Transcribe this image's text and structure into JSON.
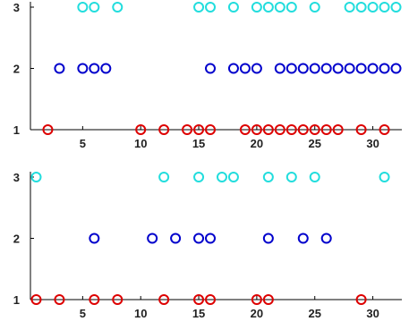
{
  "colors": {
    "red": "#dd0000",
    "blue": "#0000cc",
    "cyan": "#22dddd",
    "axis": "#000000",
    "text": "#222222"
  },
  "chart_data": [
    {
      "type": "scatter",
      "title": "",
      "xlabel": "",
      "ylabel": "",
      "xlim": [
        0.5,
        32.5
      ],
      "ylim": [
        1,
        3
      ],
      "grid": false,
      "marker": "open-circle",
      "x_ticks": [
        {
          "value": 5,
          "label": "5"
        },
        {
          "value": 10,
          "label": "10"
        },
        {
          "value": 15,
          "label": "15"
        },
        {
          "value": 20,
          "label": "20"
        },
        {
          "value": 25,
          "label": "25"
        },
        {
          "value": 30,
          "label": "30"
        }
      ],
      "y_ticks": [
        {
          "value": 1,
          "label": "1"
        },
        {
          "value": 2,
          "label": "2"
        },
        {
          "value": 3,
          "label": "3"
        }
      ],
      "series": [
        {
          "color": "red",
          "y": 1,
          "x": [
            2,
            10,
            12,
            14,
            15,
            16,
            19,
            20,
            21,
            22,
            23,
            24,
            25,
            26,
            27,
            29,
            31
          ]
        },
        {
          "color": "blue",
          "y": 2,
          "x": [
            3,
            5,
            6,
            7,
            16,
            18,
            19,
            20,
            22,
            23,
            24,
            25,
            26,
            27,
            28,
            29,
            30,
            31,
            32
          ]
        },
        {
          "color": "cyan",
          "y": 3,
          "x": [
            5,
            6,
            8,
            15,
            16,
            18,
            20,
            21,
            22,
            23,
            25,
            28,
            29,
            30,
            31,
            32
          ]
        }
      ]
    },
    {
      "type": "scatter",
      "title": "",
      "xlabel": "",
      "ylabel": "",
      "xlim": [
        0.5,
        32.5
      ],
      "ylim": [
        1,
        3
      ],
      "grid": false,
      "marker": "open-circle",
      "x_ticks": [
        {
          "value": 5,
          "label": "5"
        },
        {
          "value": 10,
          "label": "10"
        },
        {
          "value": 15,
          "label": "15"
        },
        {
          "value": 20,
          "label": "20"
        },
        {
          "value": 25,
          "label": "25"
        },
        {
          "value": 30,
          "label": "30"
        }
      ],
      "y_ticks": [
        {
          "value": 1,
          "label": "1"
        },
        {
          "value": 2,
          "label": "2"
        },
        {
          "value": 3,
          "label": "3"
        }
      ],
      "series": [
        {
          "color": "red",
          "y": 1,
          "x": [
            1,
            3,
            6,
            8,
            12,
            15,
            16,
            20,
            21,
            29
          ]
        },
        {
          "color": "blue",
          "y": 2,
          "x": [
            6,
            11,
            13,
            15,
            16,
            21,
            24,
            26
          ]
        },
        {
          "color": "cyan",
          "y": 3,
          "x": [
            1,
            12,
            15,
            17,
            18,
            21,
            23,
            25,
            31
          ]
        }
      ]
    }
  ]
}
